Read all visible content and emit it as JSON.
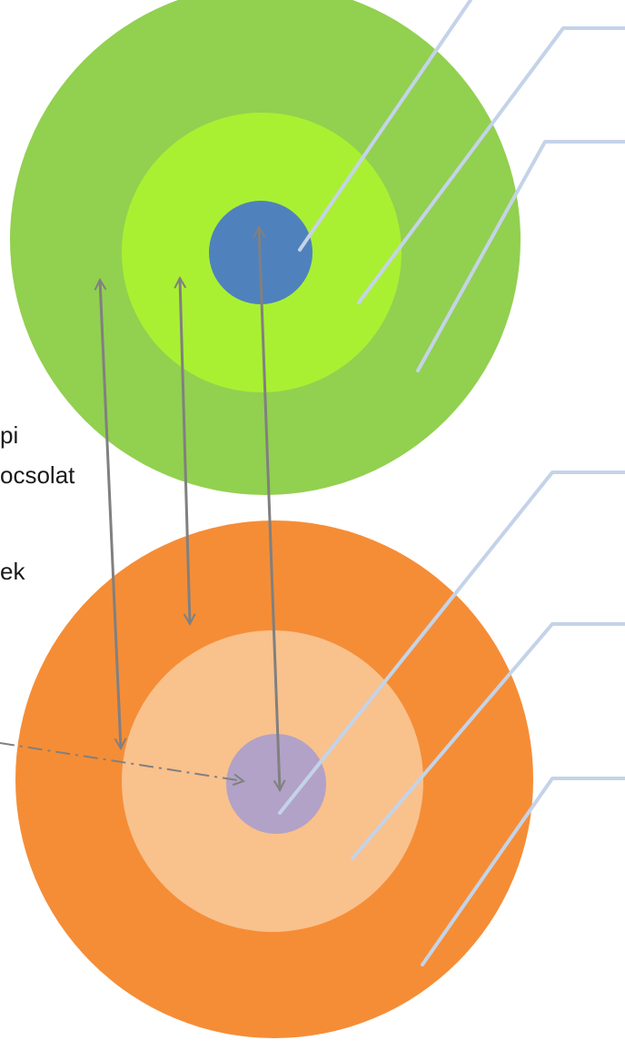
{
  "diagram": {
    "left_text": {
      "line1": "pi",
      "line2": "ocsolat",
      "line3": "ek"
    },
    "colors": {
      "outer_green": "#92d050",
      "middle_green": "#a9f032",
      "inner_blue": "#4f81bd",
      "outer_orange": "#f58d36",
      "middle_peach": "#f9c18c",
      "inner_lavender": "#b2a2c7",
      "callout_line": "#c4d3e8",
      "arrow": "#808080"
    }
  }
}
